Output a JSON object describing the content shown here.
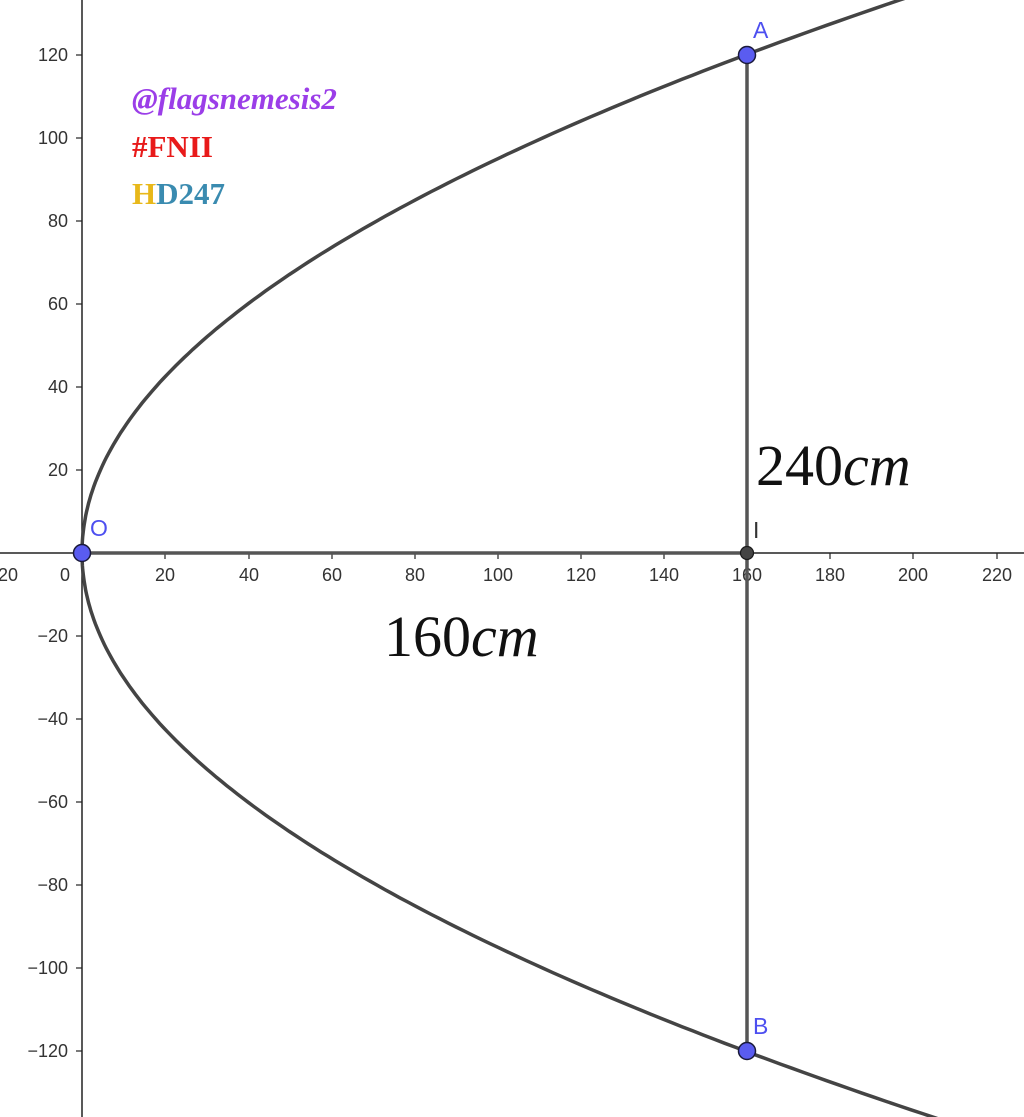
{
  "points": {
    "A": {
      "label": "A",
      "x": 160,
      "y": 120
    },
    "B": {
      "label": "B",
      "x": 160,
      "y": -120
    },
    "O": {
      "label": "O",
      "x": 0,
      "y": 0
    },
    "I": {
      "label": "I",
      "x": 160,
      "y": 0
    }
  },
  "curve": {
    "equation": "y^2 = 90x"
  },
  "measures": {
    "ab_length": "240",
    "ab_unit": "cm",
    "oi_length": "160",
    "oi_unit": "cm"
  },
  "axes": {
    "x_ticks": [
      "20",
      "0",
      "20",
      "40",
      "60",
      "80",
      "100",
      "120",
      "140",
      "160",
      "180",
      "200",
      "220"
    ],
    "y_ticks": [
      "120",
      "100",
      "80",
      "60",
      "40",
      "20",
      "−20",
      "−40",
      "−60",
      "−80",
      "−100",
      "−120"
    ]
  },
  "watermark": {
    "handle": "@flagsnemesis2",
    "hashtag": "#FNII",
    "tag_h": "H",
    "tag_rest": "D247"
  },
  "colors": {
    "point_fill": "#5a5cf0",
    "point_label": "#4d4ff0",
    "curve": "#444444",
    "segment": "#555555",
    "handle": "#9b3ee8",
    "hashtag": "#e81a1a",
    "tag_h": "#e8b81a",
    "tag_rest": "#3a8bb0"
  }
}
